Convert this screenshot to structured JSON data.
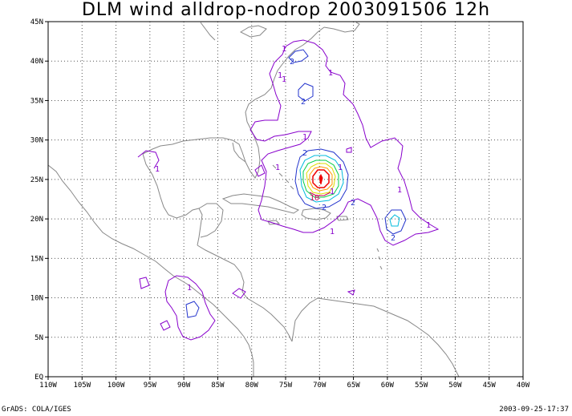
{
  "title": "DLM wind alldrop-nodrop 2003091506 12h",
  "footer_left": "GrADS: COLA/IGES",
  "footer_right": "2003-09-25-17:37",
  "map": {
    "lon_range": [
      -110,
      -40
    ],
    "lat_range": [
      0,
      45
    ],
    "x_tick_labels": [
      "110W",
      "105W",
      "100W",
      "95W",
      "90W",
      "85W",
      "80W",
      "75W",
      "70W",
      "65W",
      "60W",
      "55W",
      "50W",
      "45W",
      "40W"
    ],
    "y_tick_labels": [
      "EQ",
      "5N",
      "10N",
      "15N",
      "20N",
      "25N",
      "30N",
      "35N",
      "40N",
      "45N"
    ],
    "grid": "dotted",
    "contour_labels": [
      "1",
      "1",
      "2",
      "1",
      "1",
      "2",
      "1",
      "1",
      "1",
      "1",
      "2",
      "1",
      "2",
      "2",
      "10",
      "1",
      "2",
      "1",
      "1",
      "1"
    ],
    "colors": {
      "coast": "#888888",
      "grid": "#555555",
      "contour_1": "#8800cc",
      "contour_2": "#2233cc",
      "contour_3": "#00bbdd",
      "contour_4": "#00cc44",
      "contour_5": "#dddd00",
      "contour_6": "#ff9900",
      "contour_8": "#ee0000",
      "contour_10": "#cc0055"
    }
  }
}
